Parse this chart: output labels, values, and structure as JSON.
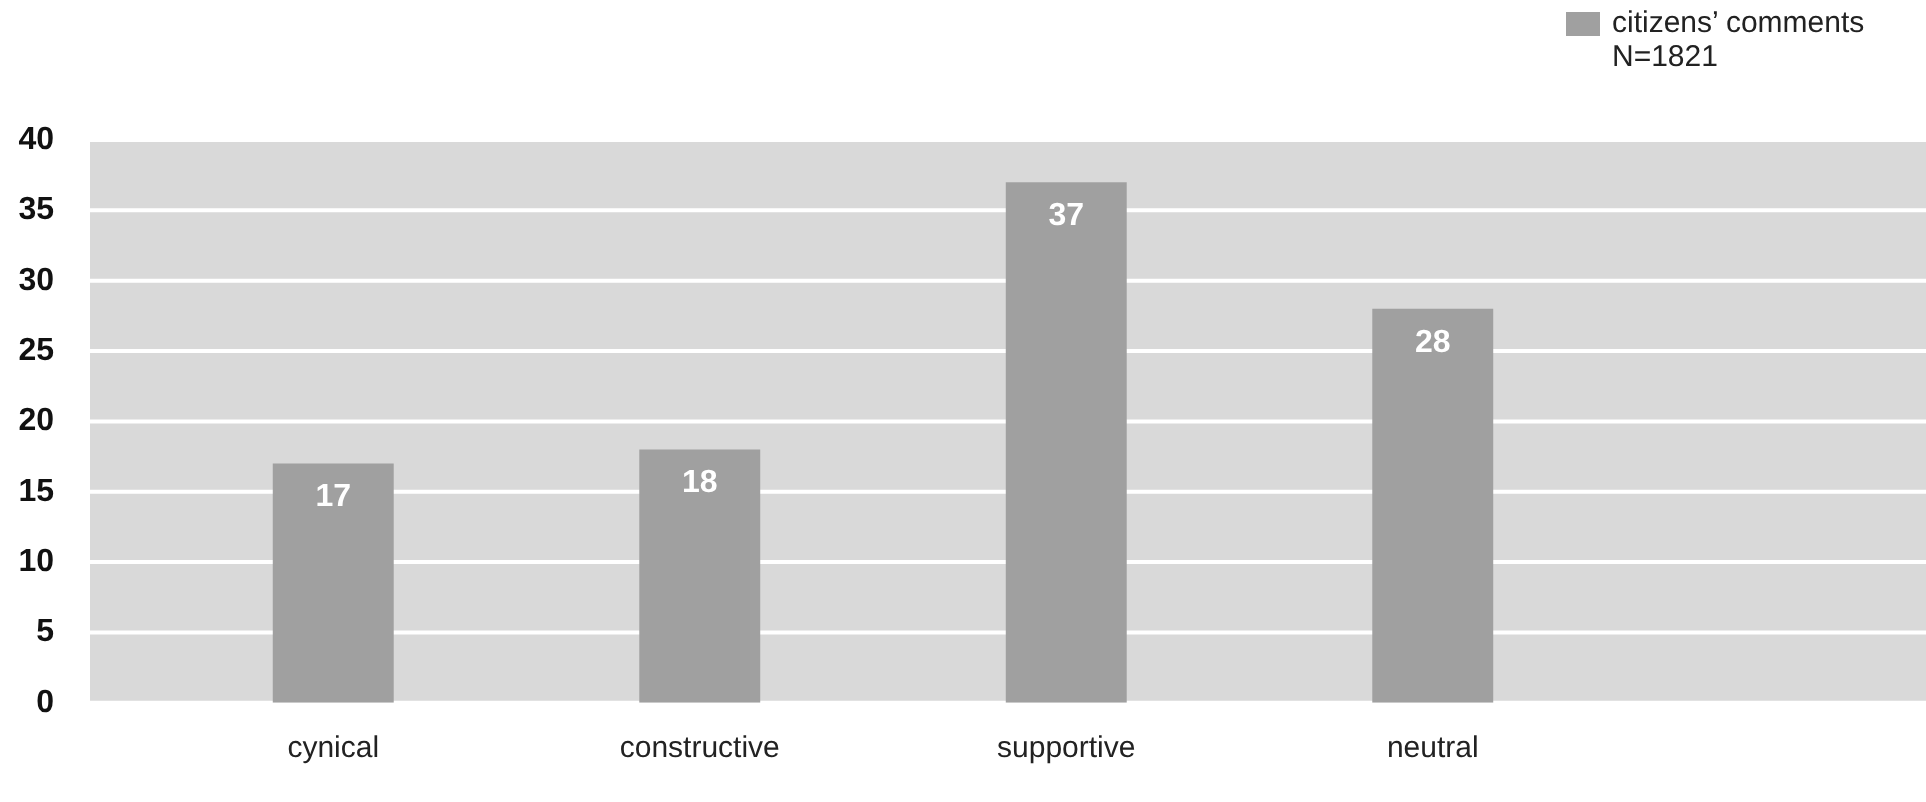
{
  "chart_data": {
    "type": "bar",
    "categories": [
      "cynical",
      "constructive",
      "supportive",
      "neutral"
    ],
    "series": [
      {
        "name": "citizens’ comments",
        "color": "#a0a0a0",
        "values": [
          17,
          18,
          37,
          28
        ]
      }
    ],
    "annotations": [
      "N=1821"
    ],
    "ylim": [
      0,
      40
    ],
    "yticks": [
      0,
      5,
      10,
      15,
      20,
      25,
      30,
      35,
      40
    ],
    "grid": "y",
    "legend": "top right",
    "data_labels": true
  }
}
